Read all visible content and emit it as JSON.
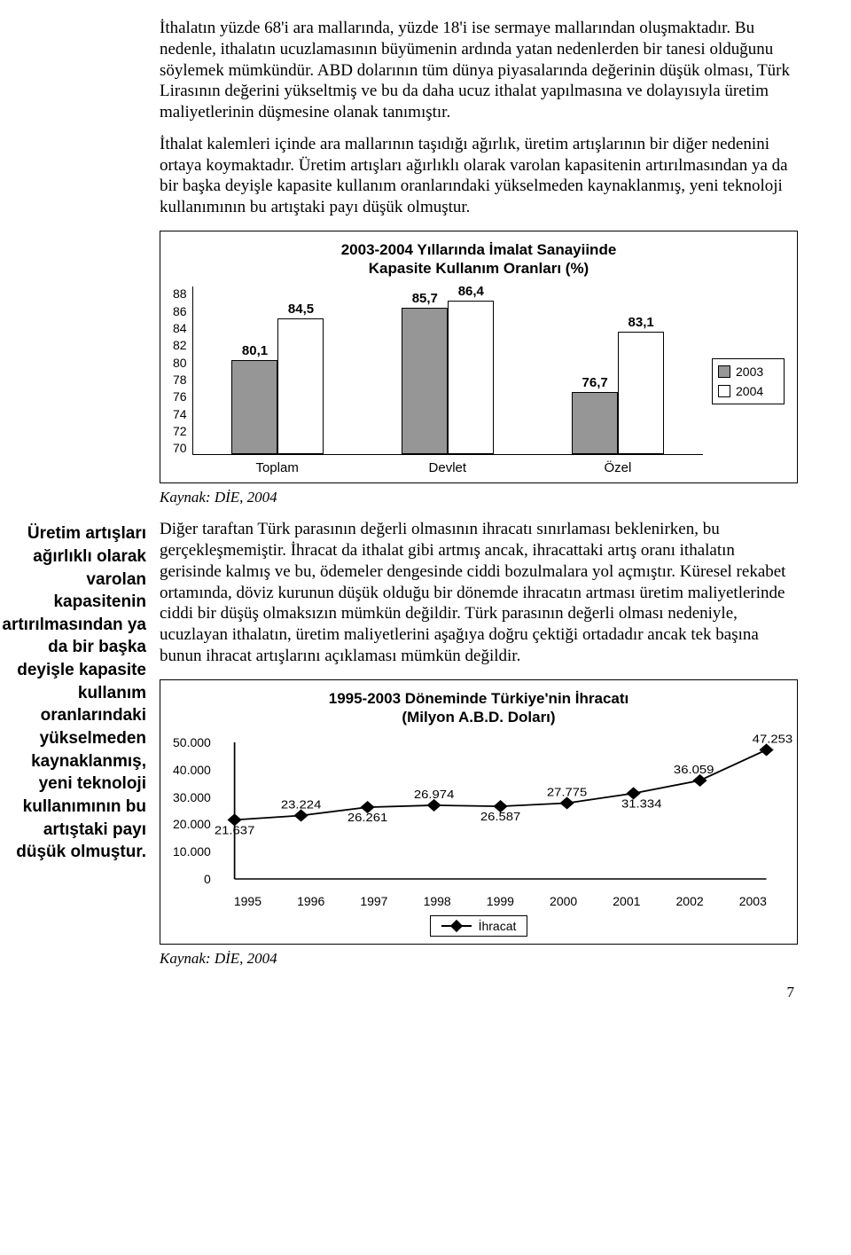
{
  "paragraphs": {
    "p1": "İthalatın yüzde 68'i ara mallarında, yüzde 18'i ise sermaye mallarından oluşmaktadır. Bu nedenle, ithalatın ucuzlamasının büyümenin ardında yatan nedenlerden bir tanesi olduğunu söylemek mümkündür. ABD dolarının tüm dünya piyasalarında değerinin düşük olması, Türk Lirasının değerini yükseltmiş ve bu da daha ucuz ithalat yapılmasına ve dolayısıyla üretim maliyetlerinin düşmesine olanak tanımıştır.",
    "p2": "İthalat kalemleri içinde ara mallarının taşıdığı ağırlık, üretim artışlarının bir diğer nedenini ortaya koymaktadır. Üretim artışları ağırlıklı olarak varolan kapasitenin artırılmasından ya da bir başka deyişle kapasite kullanım oranlarındaki yükselmeden kaynaklanmış, yeni teknoloji kullanımının bu artıştaki payı düşük olmuştur.",
    "p3": "Diğer taraftan Türk parasının değerli olmasının ihracatı sınırlaması beklenirken, bu gerçekleşmemiştir. İhracat da ithalat gibi artmış ancak, ihracattaki artış oranı ithalatın gerisinde kalmış ve bu, ödemeler dengesinde ciddi bozulmalara yol açmıştır. Küresel rekabet ortamında, döviz kurunun düşük olduğu bir dönemde ihracatın artması üretim maliyetlerinde ciddi bir düşüş olmaksızın mümkün değildir. Türk parasının değerli olması nedeniyle, ucuzlayan ithalatın, üretim maliyetlerini aşağıya doğru çektiği ortadadır ancak tek başına bunun ihracat artışlarını açıklaması mümkün değildir."
  },
  "sidebar_quote": "Üretim artışları ağırlıklı olarak varolan kapasitenin artırılmasından ya da bir başka deyişle kapasite kullanım oranlarındaki yükselmeden kaynaklanmış, yeni teknoloji kullanımının bu artıştaki payı düşük olmuştur.",
  "bar_chart": {
    "title_line1": "2003-2004 Yıllarında İmalat Sanayiinde",
    "title_line2": "Kapasite Kullanım Oranları (%)",
    "y_ticks": [
      "88",
      "86",
      "84",
      "82",
      "80",
      "78",
      "76",
      "74",
      "72",
      "70"
    ],
    "ymin": 70,
    "ymax": 88,
    "categories": [
      "Toplam",
      "Devlet",
      "Özel"
    ],
    "series": [
      {
        "name": "2003",
        "color": "#969696",
        "values": [
          80.1,
          85.7,
          76.7
        ],
        "labels": [
          "80,1",
          "85,7",
          "76,7"
        ]
      },
      {
        "name": "2004",
        "color": "#ffffff",
        "values": [
          84.5,
          86.4,
          83.1
        ],
        "labels": [
          "84,5",
          "86,4",
          "83,1"
        ]
      }
    ],
    "bar_border": "#000000",
    "axis_color": "#000000"
  },
  "line_chart": {
    "title_line1": "1995-2003 Döneminde Türkiye'nin İhracatı",
    "title_line2": "(Milyon A.B.D. Doları)",
    "y_ticks": [
      "50.000",
      "40.000",
      "30.000",
      "20.000",
      "10.000",
      "0"
    ],
    "ymin": 0,
    "ymax": 50000,
    "x_labels": [
      "1995",
      "1996",
      "1997",
      "1998",
      "1999",
      "2000",
      "2001",
      "2002",
      "2003"
    ],
    "series_name": "İhracat",
    "values": [
      21637,
      23224,
      26261,
      26974,
      26587,
      27775,
      31334,
      36059,
      47253
    ],
    "value_labels": [
      "21.637",
      "23.224",
      "26.261",
      "26.974",
      "26.587",
      "27.775",
      "31.334",
      "36.059",
      "47.253"
    ],
    "line_color": "#000000",
    "marker_fill": "#000000"
  },
  "source_text": "Kaynak: DİE, 2004",
  "page_number": "7"
}
